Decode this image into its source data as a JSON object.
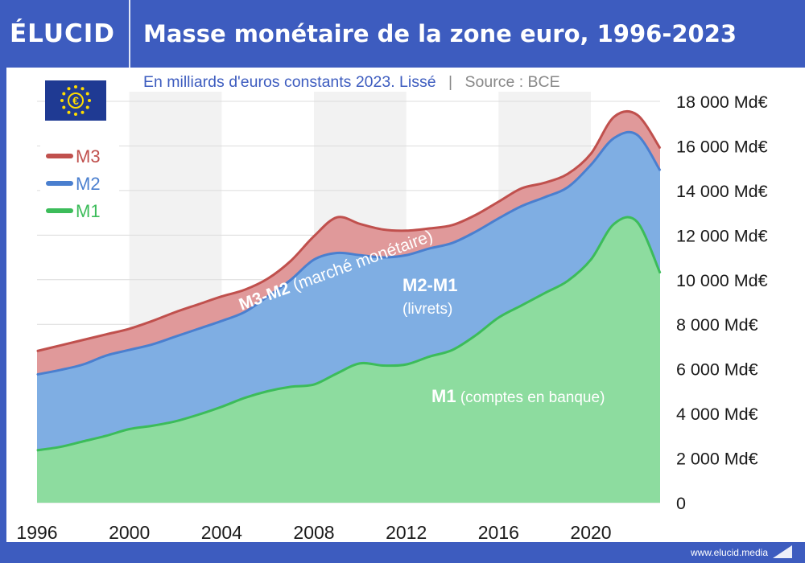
{
  "header": {
    "brand": "ÉLUCID",
    "title": "Masse monétaire de la zone euro, 1996-2023"
  },
  "subtitle": {
    "main": "En milliards d'euros constants 2023. Lissé",
    "separator": "|",
    "source": "Source : BCE"
  },
  "footer": {
    "url": "www.elucid.media"
  },
  "colors": {
    "m3": "#c0504d",
    "m3_fill": "#e0999a",
    "m2": "#4a7fcf",
    "m2_fill": "#7faee3",
    "m1": "#3cbc5a",
    "m1_fill": "#8ddc9f",
    "brand": "#3d5cbf"
  },
  "legend": [
    {
      "key": "m3",
      "label": "M3"
    },
    {
      "key": "m2",
      "label": "M2"
    },
    {
      "key": "m1",
      "label": "M1"
    }
  ],
  "flag_icon": "eu-flag-icon",
  "annotations": {
    "m3m2_bold": "M3-M2",
    "m3m2_rest": " (marché monétaire)",
    "m2m1_bold": "M2-M1",
    "m2m1_sub": "(livrets)",
    "m1_bold": "M1",
    "m1_rest": " (comptes en banque)"
  },
  "chart_data": {
    "type": "area",
    "x": [
      1996,
      1997,
      1998,
      1999,
      2000,
      2001,
      2002,
      2003,
      2004,
      2005,
      2006,
      2007,
      2008,
      2009,
      2010,
      2011,
      2012,
      2013,
      2014,
      2015,
      2016,
      2017,
      2018,
      2019,
      2020,
      2021,
      2022,
      2023
    ],
    "series": [
      {
        "name": "M3",
        "values": [
          6800,
          7050,
          7300,
          7550,
          7800,
          8150,
          8550,
          8900,
          9250,
          9550,
          10050,
          10850,
          11950,
          12800,
          12500,
          12250,
          12200,
          12300,
          12450,
          12900,
          13500,
          14100,
          14350,
          14750,
          15650,
          17300,
          17400,
          15900
        ]
      },
      {
        "name": "M2",
        "values": [
          5750,
          5950,
          6200,
          6600,
          6850,
          7100,
          7450,
          7800,
          8150,
          8550,
          9250,
          10000,
          10900,
          11200,
          11100,
          11000,
          11100,
          11400,
          11650,
          12150,
          12750,
          13300,
          13700,
          14150,
          15150,
          16350,
          16500,
          14900
        ]
      },
      {
        "name": "M1",
        "values": [
          2350,
          2500,
          2750,
          3000,
          3300,
          3450,
          3650,
          3950,
          4300,
          4700,
          5000,
          5200,
          5300,
          5800,
          6250,
          6150,
          6200,
          6550,
          6850,
          7500,
          8300,
          8850,
          9400,
          9950,
          10900,
          12500,
          12600,
          10300
        ]
      }
    ],
    "xlim": [
      1996,
      2023
    ],
    "ylim": [
      0,
      18000
    ],
    "yticks": [
      0,
      2000,
      4000,
      6000,
      8000,
      10000,
      12000,
      14000,
      16000,
      18000
    ],
    "ytick_labels": [
      "0",
      "2 000 Md€",
      "4 000 Md€",
      "6 000 Md€",
      "8 000 Md€",
      "10 000 Md€",
      "12 000 Md€",
      "14 000 Md€",
      "16 000 Md€",
      "18 000 Md€"
    ],
    "xticks": [
      1996,
      2000,
      2004,
      2008,
      2012,
      2016,
      2020
    ],
    "xtick_labels": [
      "1996",
      "2000",
      "2004",
      "2008",
      "2012",
      "2016",
      "2020"
    ],
    "grid": true,
    "legend_position": "top-left",
    "stacked_labels": true
  }
}
